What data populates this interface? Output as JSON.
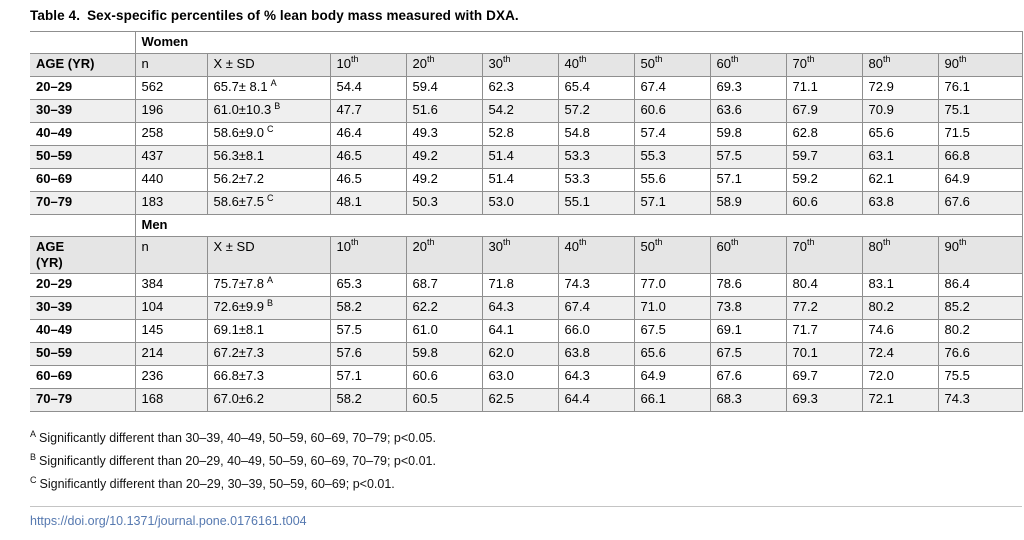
{
  "title": {
    "label": "Table 4.",
    "text": "Sex-specific percentiles of % lean body mass measured with DXA."
  },
  "table": {
    "percentile_headers": [
      "10th",
      "20th",
      "30th",
      "40th",
      "50th",
      "60th",
      "70th",
      "80th",
      "90th"
    ],
    "n_header": "n",
    "xsd_header": "X ± SD",
    "sections": [
      {
        "label": "Women",
        "age_header": "AGE (YR)",
        "rows": [
          {
            "age": "20–29",
            "n": "562",
            "xsd": "65.7± 8.1",
            "note": "A",
            "percentiles": [
              "54.4",
              "59.4",
              "62.3",
              "65.4",
              "67.4",
              "69.3",
              "71.1",
              "72.9",
              "76.1"
            ]
          },
          {
            "age": "30–39",
            "n": "196",
            "xsd": "61.0±10.3",
            "note": "B",
            "percentiles": [
              "47.7",
              "51.6",
              "54.2",
              "57.2",
              "60.6",
              "63.6",
              "67.9",
              "70.9",
              "75.1"
            ]
          },
          {
            "age": "40–49",
            "n": "258",
            "xsd": "58.6±9.0",
            "note": "C",
            "percentiles": [
              "46.4",
              "49.3",
              "52.8",
              "54.8",
              "57.4",
              "59.8",
              "62.8",
              "65.6",
              "71.5"
            ]
          },
          {
            "age": "50–59",
            "n": "437",
            "xsd": "56.3±8.1",
            "note": "",
            "percentiles": [
              "46.5",
              "49.2",
              "51.4",
              "53.3",
              "55.3",
              "57.5",
              "59.7",
              "63.1",
              "66.8"
            ]
          },
          {
            "age": "60–69",
            "n": "440",
            "xsd": "56.2±7.2",
            "note": "",
            "percentiles": [
              "46.5",
              "49.2",
              "51.4",
              "53.3",
              "55.6",
              "57.1",
              "59.2",
              "62.1",
              "64.9"
            ]
          },
          {
            "age": "70–79",
            "n": "183",
            "xsd": "58.6±7.5",
            "note": "C",
            "percentiles": [
              "48.1",
              "50.3",
              "53.0",
              "55.1",
              "57.1",
              "58.9",
              "60.6",
              "63.8",
              "67.6"
            ]
          }
        ]
      },
      {
        "label": "Men",
        "age_header": "AGE\n(YR)",
        "rows": [
          {
            "age": "20–29",
            "n": "384",
            "xsd": "75.7±7.8",
            "note": "A",
            "percentiles": [
              "65.3",
              "68.7",
              "71.8",
              "74.3",
              "77.0",
              "78.6",
              "80.4",
              "83.1",
              "86.4"
            ]
          },
          {
            "age": "30–39",
            "n": "104",
            "xsd": "72.6±9.9",
            "note": "B",
            "percentiles": [
              "58.2",
              "62.2",
              "64.3",
              "67.4",
              "71.0",
              "73.8",
              "77.2",
              "80.2",
              "85.2"
            ]
          },
          {
            "age": "40–49",
            "n": "145",
            "xsd": "69.1±8.1",
            "note": "",
            "percentiles": [
              "57.5",
              "61.0",
              "64.1",
              "66.0",
              "67.5",
              "69.1",
              "71.7",
              "74.6",
              "80.2"
            ]
          },
          {
            "age": "50–59",
            "n": "214",
            "xsd": "67.2±7.3",
            "note": "",
            "percentiles": [
              "57.6",
              "59.8",
              "62.0",
              "63.8",
              "65.6",
              "67.5",
              "70.1",
              "72.4",
              "76.6"
            ]
          },
          {
            "age": "60–69",
            "n": "236",
            "xsd": "66.8±7.3",
            "note": "",
            "percentiles": [
              "57.1",
              "60.6",
              "63.0",
              "64.3",
              "64.9",
              "67.6",
              "69.7",
              "72.0",
              "75.5"
            ]
          },
          {
            "age": "70–79",
            "n": "168",
            "xsd": "67.0±6.2",
            "note": "",
            "percentiles": [
              "58.2",
              "60.5",
              "62.5",
              "64.4",
              "66.1",
              "68.3",
              "69.3",
              "72.1",
              "74.3"
            ]
          }
        ]
      }
    ]
  },
  "footnotes": [
    {
      "sup": "A",
      "text": "Significantly different than 30–39, 40–49, 50–59, 60–69, 70–79; p<0.05."
    },
    {
      "sup": "B",
      "text": "Significantly different than 20–29, 40–49, 50–59, 60–69, 70–79; p<0.01."
    },
    {
      "sup": "C",
      "text": "Significantly different than 20–29, 30–39, 50–59, 60–69; p<0.01."
    }
  ],
  "doi_link": "https://doi.org/10.1371/journal.pone.0176161.t004",
  "colors": {
    "header_bg": "#e5e5e5",
    "alt_row_bg": "#efefef",
    "border": "#8f8f8f",
    "link": "#5679b0"
  }
}
